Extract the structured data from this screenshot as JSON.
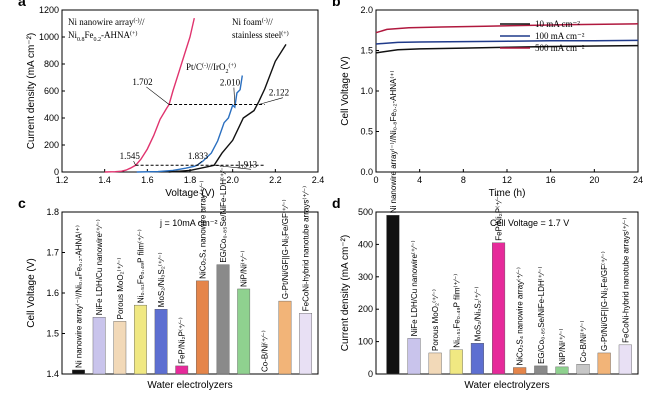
{
  "chart_data": [
    {
      "panel": "a",
      "type": "line",
      "xlabel": "Voltage (V)",
      "ylabel": "Current density (mA cm⁻²)",
      "xlim": [
        1.2,
        2.4
      ],
      "ylim": [
        0,
        1200
      ],
      "xticks": [
        "1.2",
        "1.4",
        "1.6",
        "1.8",
        "2.0",
        "2.2",
        "2.4"
      ],
      "yticks": [
        "0",
        "200",
        "400",
        "600",
        "800",
        "1000",
        "1200"
      ],
      "grid": false,
      "series": [
        {
          "name": "Ni nanowire array//Ni0.8Fe0.2-AHNA",
          "color": "#e0336e",
          "x": [
            1.4,
            1.45,
            1.48,
            1.5,
            1.52,
            1.545,
            1.57,
            1.6,
            1.63,
            1.66,
            1.69,
            1.702,
            1.72,
            1.75,
            1.78,
            1.8,
            1.82
          ],
          "y": [
            0,
            2,
            6,
            14,
            28,
            50,
            95,
            170,
            270,
            390,
            470,
            500,
            600,
            750,
            900,
            1000,
            1140
          ]
        },
        {
          "name": "Pt/C//IrO2",
          "color": "#2a6fc0",
          "x": [
            1.55,
            1.65,
            1.72,
            1.78,
            1.82,
            1.833,
            1.86,
            1.9,
            1.93,
            1.96,
            1.98,
            2.0,
            2.01,
            2.02,
            2.035,
            2.045
          ],
          "y": [
            0,
            3,
            12,
            28,
            42,
            50,
            80,
            140,
            230,
            340,
            420,
            470,
            500,
            560,
            630,
            690
          ]
        },
        {
          "name": "Ni foam//stainless steel",
          "color": "#111111",
          "x": [
            1.7,
            1.8,
            1.87,
            1.9,
            1.913,
            1.95,
            2.0,
            2.05,
            2.1,
            2.122,
            2.15,
            2.2,
            2.25
          ],
          "y": [
            0,
            12,
            35,
            45,
            50,
            120,
            250,
            380,
            470,
            500,
            630,
            800,
            960
          ]
        }
      ],
      "annotations": {
        "label_pink": "Ni nanowire array",
        "label_pink_2": "Ni",
        "label_black_a": "Ni foam",
        "label_black_b": "stainless steel",
        "label_blue": "Pt/C",
        "label_blue_2": "//IrO",
        "sup_minus": "(-)",
        "sup_plus": "(+)",
        "sub_fe": "0.8",
        "fe": "Fe",
        "sub_ahna": "0.2",
        "ahna": "-AHNA",
        "sub_2": "2",
        "sep": "//",
        "v1": "1.545",
        "v2": "1.833",
        "v3": "1.913",
        "v4": "1.702",
        "v5": "2.010",
        "v6": "2.122"
      }
    },
    {
      "panel": "b",
      "type": "line",
      "xlabel": "Time (h)",
      "ylabel": "Cell Voltage (V)",
      "xlim": [
        0,
        24
      ],
      "ylim": [
        0,
        2.0
      ],
      "xticks": [
        "0",
        "4",
        "8",
        "12",
        "16",
        "20",
        "24"
      ],
      "yticks": [
        "0.0",
        "0.5",
        "1.0",
        "1.5",
        "2.0"
      ],
      "legend": [
        "10 mA cm⁻²",
        "100 mA cm⁻²",
        "500 mA cm⁻²"
      ],
      "series": [
        {
          "name": "10 mA cm-2",
          "color": "#111111",
          "x": [
            0,
            2,
            4,
            8,
            12,
            16,
            20,
            24
          ],
          "y": [
            1.47,
            1.51,
            1.52,
            1.53,
            1.54,
            1.55,
            1.555,
            1.56
          ]
        },
        {
          "name": "100 mA cm-2",
          "color": "#1f3a8a",
          "x": [
            0,
            2,
            4,
            8,
            12,
            16,
            20,
            24
          ],
          "y": [
            1.58,
            1.6,
            1.605,
            1.61,
            1.615,
            1.62,
            1.62,
            1.625
          ]
        },
        {
          "name": "500 mA cm-2",
          "color": "#b0183e",
          "x": [
            0,
            1,
            3,
            6,
            10,
            14,
            18,
            24
          ],
          "y": [
            1.72,
            1.76,
            1.78,
            1.79,
            1.8,
            1.81,
            1.82,
            1.83
          ]
        }
      ]
    },
    {
      "panel": "c",
      "type": "bar",
      "xlabel": "Water electrolyzers",
      "ylabel": "Cell Voltage (V)",
      "note": "j = 10mA cm⁻²",
      "ylim": [
        1.4,
        1.8
      ],
      "yticks": [
        "1.4",
        "1.5",
        "1.6",
        "1.7",
        "1.8"
      ],
      "categories": [
        "Ni nanowire array(-)//Ni0.8Fe0.2-AHNA(+)",
        "NiFe LDH/Cu nanowire(+/-)",
        "Porous MoO2(+/-)",
        "Ni0.51Fe0.49P film(+/-)",
        "MoS2/Ni3S2(+/-)",
        "FeP/Ni2P(+/-)",
        "NiCo2S4 nanowire array(+/-)",
        "EG/Co0.85Se/NiFe-LDH(+/-)",
        "NiP/Ni(+/-)",
        "Co-B/Ni(+/-)",
        "G-Pt/Ni/GF||G-Ni2Fe/GF(+/-)",
        "FeCoNi-hybrid nanotube arrays(+/-)"
      ],
      "labels": [
        "Ni nanowire array⁽⁻⁾//Ni₀.₈Fe₀.₂-AHNA⁽⁺⁾",
        "NiFe LDH/Cu nanowire⁽⁺⁄⁻⁾",
        "Porous MoO₂⁽⁺⁄⁻⁾",
        "Ni₀.₅₁Fe₀.₄₉P film⁽⁺⁄⁻⁾",
        "MoS₂/Ni₃S₂⁽⁺⁄⁻⁾",
        "FeP/Ni₂P⁽⁺⁄⁻⁾",
        "NiCo₂S₄ nanowire array⁽⁺⁄⁻⁾",
        "EG/Co₀.₈₅Se/NiFe-LDH⁽⁺⁄⁻⁾",
        "NiP/Ni⁽⁺⁄⁻⁾",
        "Co-B/Ni⁽⁺⁄⁻⁾",
        "G-Pt/Ni/GF||G-Ni₂Fe/GF⁽⁺⁄⁻⁾",
        "FeCoNi-hybrid nanotube arrays⁽⁺⁄⁻⁾"
      ],
      "values": [
        1.41,
        1.54,
        1.53,
        1.57,
        1.56,
        1.42,
        1.63,
        1.67,
        1.61,
        1.4,
        1.58,
        1.55
      ],
      "colors": [
        "#111111",
        "#c9c4ec",
        "#f2d9b8",
        "#f0e882",
        "#5d6fd1",
        "#e62a9a",
        "#e5854a",
        "#8a8a8a",
        "#8fd18f",
        "#c7c7c7",
        "#f2b478",
        "#e8e0f4"
      ]
    },
    {
      "panel": "d",
      "type": "bar",
      "xlabel": "Water electrolyzers",
      "ylabel": "Current density (mA cm⁻²)",
      "note": "Cell Voltage = 1.7 V",
      "ylim": [
        0,
        500
      ],
      "yticks": [
        "0",
        "100",
        "200",
        "300",
        "400",
        "500"
      ],
      "categories": [
        "Ni nanowire array(-)//Ni0.8Fe0.2-AHNA(+)",
        "NiFe LDH/Cu nanowire(+/-)",
        "Porous MoO2(+/-)",
        "Ni0.51Fe0.49P film(+/-)",
        "MoS2/Ni3S2(+/-)",
        "FeP/Ni2P(+/-)",
        "NiCo2S4 nanowire array(+/-)",
        "EG/Co0.85Se/NiFe-LDH(+/-)",
        "NiP/Ni(+/-)",
        "Co-B/Ni(+/-)",
        "G-Pt/Ni/GF||G-Ni2Fe/GF(+/-)",
        "FeCoNi-hybrid nanotube arrays(+/-)"
      ],
      "labels": [
        "Ni nanowire array⁽⁻⁾//Ni₀.₈Fe₀.₂-AHNA⁽⁺⁾",
        "NiFe LDH/Cu nanowire⁽⁺⁄⁻⁾",
        "Porous MoO₂⁽⁺⁄⁻⁾",
        "Ni₀.₅₁Fe₀.₄₉P film⁽⁺⁄⁻⁾",
        "MoS₂/Ni₃S₂⁽⁺⁄⁻⁾",
        "FeP/Ni₂P⁽⁺⁄⁻⁾",
        "NiCo₂S₄ nanowire array⁽⁺⁄⁻⁾",
        "EG/Co₀.₈₅Se/NiFe-LDH⁽⁺⁄⁻⁾",
        "NiP/Ni⁽⁺⁄⁻⁾",
        "Co-B/Ni⁽⁺⁄⁻⁾",
        "G-Pt/Ni/GF||G-Ni₂Fe/GF⁽⁺⁄⁻⁾",
        "FeCoNi-hybrid nanotube arrays⁽⁺⁄⁻⁾"
      ],
      "values": [
        490,
        110,
        65,
        75,
        95,
        405,
        20,
        25,
        22,
        30,
        65,
        90
      ],
      "colors": [
        "#111111",
        "#c9c4ec",
        "#f2d9b8",
        "#f0e882",
        "#5d6fd1",
        "#e62a9a",
        "#e5854a",
        "#8a8a8a",
        "#8fd18f",
        "#c7c7c7",
        "#f2b478",
        "#e8e0f4"
      ]
    }
  ]
}
